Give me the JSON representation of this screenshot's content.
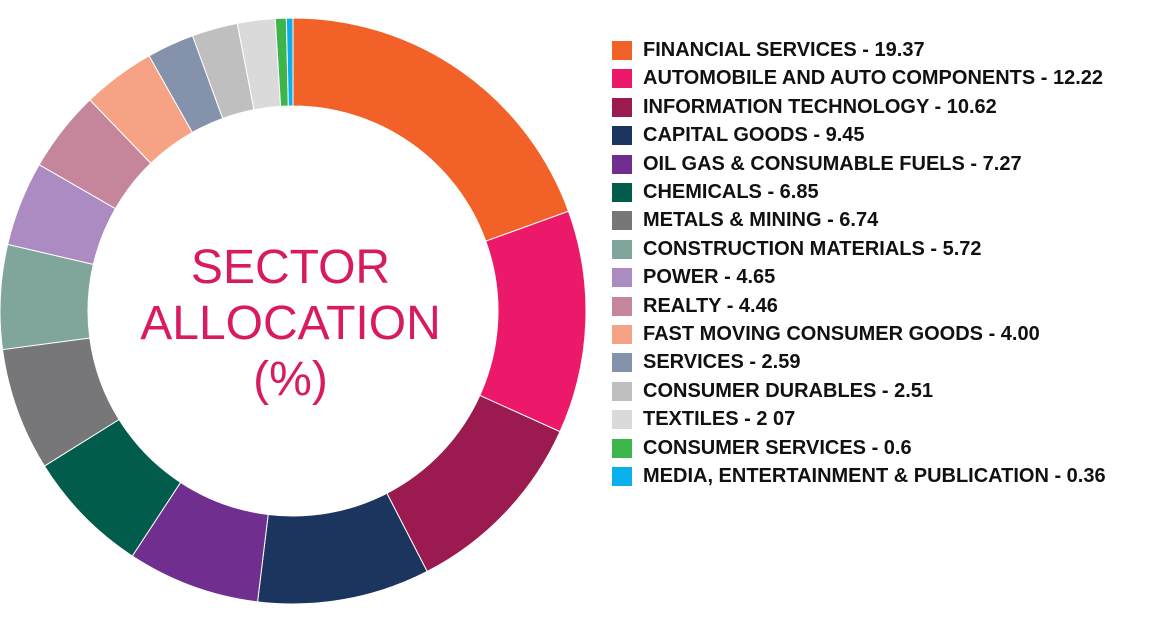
{
  "chart_data": {
    "type": "pie",
    "donut": true,
    "title_lines": [
      "SECTOR",
      "ALLOCATION",
      "(%)"
    ],
    "legend_position": "right",
    "slices": [
      {
        "name": "FINANCIAL SERVICES",
        "value": 19.37,
        "label": "FINANCIAL SERVICES - 19.37",
        "color": "#f26128"
      },
      {
        "name": "AUTOMOBILE AND AUTO COMPONENTS",
        "value": 12.22,
        "label": "AUTOMOBILE AND AUTO COMPONENTS - 12.22",
        "color": "#ec1869"
      },
      {
        "name": "INFORMATION TECHNOLOGY",
        "value": 10.62,
        "label": "INFORMATION TECHNOLOGY - 10.62",
        "color": "#9b1a4f"
      },
      {
        "name": "CAPITAL GOODS",
        "value": 9.45,
        "label": "CAPITAL GOODS - 9.45",
        "color": "#1c355e"
      },
      {
        "name": "OIL GAS & CONSUMABLE FUELS",
        "value": 7.27,
        "label": "OIL GAS & CONSUMABLE FUELS - 7.27",
        "color": "#702f8f"
      },
      {
        "name": "CHEMICALS",
        "value": 6.85,
        "label": "CHEMICALS - 6.85",
        "color": "#015c4c"
      },
      {
        "name": "METALS & MINING",
        "value": 6.74,
        "label": "METALS & MINING - 6.74",
        "color": "#77777a"
      },
      {
        "name": "CONSTRUCTION MATERIALS",
        "value": 5.72,
        "label": "CONSTRUCTION MATERIALS - 5.72",
        "color": "#80a69b"
      },
      {
        "name": "POWER",
        "value": 4.65,
        "label": "POWER - 4.65",
        "color": "#ab8bc2"
      },
      {
        "name": "REALTY",
        "value": 4.46,
        "label": "REALTY - 4.46",
        "color": "#c5859b"
      },
      {
        "name": "FAST MOVING CONSUMER GOODS",
        "value": 4.0,
        "label": "FAST MOVING CONSUMER GOODS - 4.00",
        "color": "#f6a385"
      },
      {
        "name": "SERVICES",
        "value": 2.59,
        "label": "SERVICES - 2.59",
        "color": "#8493ab"
      },
      {
        "name": "CONSUMER DURABLES",
        "value": 2.51,
        "label": "CONSUMER DURABLES - 2.51",
        "color": "#bfbfbf"
      },
      {
        "name": "TEXTILES",
        "value": 2.07,
        "label": "TEXTILES - 2 07",
        "color": "#dadada"
      },
      {
        "name": "CONSUMER SERVICES",
        "value": 0.6,
        "label": "CONSUMER SERVICES -  0.6",
        "color": "#3cb54a"
      },
      {
        "name": "MEDIA, ENTERTAINMENT & PUBLICATION",
        "value": 0.36,
        "label": "MEDIA, ENTERTAINMENT & PUBLICATION  - 0.36",
        "color": "#0ab0eb"
      }
    ]
  }
}
